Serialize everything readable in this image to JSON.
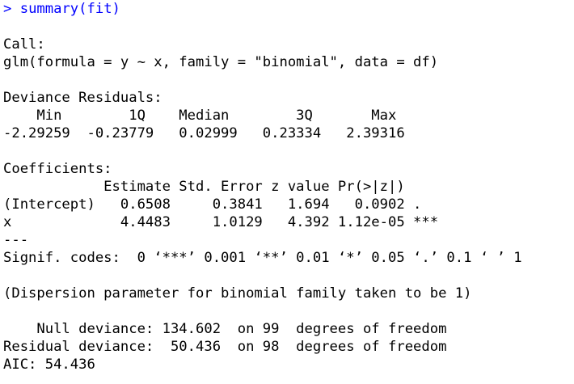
{
  "console": {
    "prompt_symbol": ">",
    "command": "summary(fit)",
    "output_lines": [
      "",
      "Call:",
      "glm(formula = y ~ x, family = \"binomial\", data = df)",
      "",
      "Deviance Residuals:",
      "    Min        1Q    Median        3Q       Max  ",
      "-2.29259  -0.23779   0.02999   0.23334   2.39316  ",
      "",
      "Coefficients:",
      "            Estimate Std. Error z value Pr(>|z|)    ",
      "(Intercept)   0.6508     0.3841   1.694   0.0902 .  ",
      "x             4.4483     1.0129   4.392 1.12e-05 ***",
      "---",
      "Signif. codes:  0 ‘***’ 0.001 ‘**’ 0.01 ‘*’ 0.05 ‘.’ 0.1 ‘ ’ 1",
      "",
      "(Dispersion parameter for binomial family taken to be 1)",
      "",
      "    Null deviance: 134.602  on 99  degrees of freedom",
      "Residual deviance:  50.436  on 98  degrees of freedom",
      "AIC: 54.436"
    ]
  },
  "colors": {
    "background": "#ffffff",
    "prompt": "#0000ff",
    "output": "#000000"
  }
}
